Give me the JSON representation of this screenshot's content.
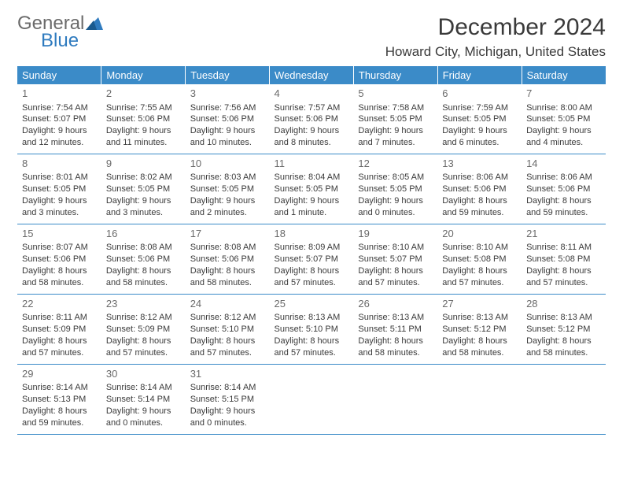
{
  "logo": {
    "text_top": "General",
    "text_bottom": "Blue"
  },
  "title": "December 2024",
  "location": "Howard City, Michigan, United States",
  "colors": {
    "header_bg": "#3b8bc8",
    "header_text": "#ffffff",
    "shaded_bg": "#eeeeee",
    "border": "#3b8bc8",
    "logo_gray": "#6b6b6b",
    "logo_blue": "#2f7bbf"
  },
  "day_headers": [
    "Sunday",
    "Monday",
    "Tuesday",
    "Wednesday",
    "Thursday",
    "Friday",
    "Saturday"
  ],
  "weeks": [
    [
      {
        "n": "1",
        "shaded": true,
        "sunrise": "7:54 AM",
        "sunset": "5:07 PM",
        "daylight": "9 hours and 12 minutes."
      },
      {
        "n": "2",
        "shaded": false,
        "sunrise": "7:55 AM",
        "sunset": "5:06 PM",
        "daylight": "9 hours and 11 minutes."
      },
      {
        "n": "3",
        "shaded": false,
        "sunrise": "7:56 AM",
        "sunset": "5:06 PM",
        "daylight": "9 hours and 10 minutes."
      },
      {
        "n": "4",
        "shaded": false,
        "sunrise": "7:57 AM",
        "sunset": "5:06 PM",
        "daylight": "9 hours and 8 minutes."
      },
      {
        "n": "5",
        "shaded": false,
        "sunrise": "7:58 AM",
        "sunset": "5:05 PM",
        "daylight": "9 hours and 7 minutes."
      },
      {
        "n": "6",
        "shaded": false,
        "sunrise": "7:59 AM",
        "sunset": "5:05 PM",
        "daylight": "9 hours and 6 minutes."
      },
      {
        "n": "7",
        "shaded": true,
        "sunrise": "8:00 AM",
        "sunset": "5:05 PM",
        "daylight": "9 hours and 4 minutes."
      }
    ],
    [
      {
        "n": "8",
        "shaded": true,
        "sunrise": "8:01 AM",
        "sunset": "5:05 PM",
        "daylight": "9 hours and 3 minutes."
      },
      {
        "n": "9",
        "shaded": false,
        "sunrise": "8:02 AM",
        "sunset": "5:05 PM",
        "daylight": "9 hours and 3 minutes."
      },
      {
        "n": "10",
        "shaded": false,
        "sunrise": "8:03 AM",
        "sunset": "5:05 PM",
        "daylight": "9 hours and 2 minutes."
      },
      {
        "n": "11",
        "shaded": false,
        "sunrise": "8:04 AM",
        "sunset": "5:05 PM",
        "daylight": "9 hours and 1 minute."
      },
      {
        "n": "12",
        "shaded": false,
        "sunrise": "8:05 AM",
        "sunset": "5:05 PM",
        "daylight": "9 hours and 0 minutes."
      },
      {
        "n": "13",
        "shaded": false,
        "sunrise": "8:06 AM",
        "sunset": "5:06 PM",
        "daylight": "8 hours and 59 minutes."
      },
      {
        "n": "14",
        "shaded": true,
        "sunrise": "8:06 AM",
        "sunset": "5:06 PM",
        "daylight": "8 hours and 59 minutes."
      }
    ],
    [
      {
        "n": "15",
        "shaded": true,
        "sunrise": "8:07 AM",
        "sunset": "5:06 PM",
        "daylight": "8 hours and 58 minutes."
      },
      {
        "n": "16",
        "shaded": false,
        "sunrise": "8:08 AM",
        "sunset": "5:06 PM",
        "daylight": "8 hours and 58 minutes."
      },
      {
        "n": "17",
        "shaded": false,
        "sunrise": "8:08 AM",
        "sunset": "5:06 PM",
        "daylight": "8 hours and 58 minutes."
      },
      {
        "n": "18",
        "shaded": false,
        "sunrise": "8:09 AM",
        "sunset": "5:07 PM",
        "daylight": "8 hours and 57 minutes."
      },
      {
        "n": "19",
        "shaded": false,
        "sunrise": "8:10 AM",
        "sunset": "5:07 PM",
        "daylight": "8 hours and 57 minutes."
      },
      {
        "n": "20",
        "shaded": false,
        "sunrise": "8:10 AM",
        "sunset": "5:08 PM",
        "daylight": "8 hours and 57 minutes."
      },
      {
        "n": "21",
        "shaded": true,
        "sunrise": "8:11 AM",
        "sunset": "5:08 PM",
        "daylight": "8 hours and 57 minutes."
      }
    ],
    [
      {
        "n": "22",
        "shaded": true,
        "sunrise": "8:11 AM",
        "sunset": "5:09 PM",
        "daylight": "8 hours and 57 minutes."
      },
      {
        "n": "23",
        "shaded": false,
        "sunrise": "8:12 AM",
        "sunset": "5:09 PM",
        "daylight": "8 hours and 57 minutes."
      },
      {
        "n": "24",
        "shaded": false,
        "sunrise": "8:12 AM",
        "sunset": "5:10 PM",
        "daylight": "8 hours and 57 minutes."
      },
      {
        "n": "25",
        "shaded": false,
        "sunrise": "8:13 AM",
        "sunset": "5:10 PM",
        "daylight": "8 hours and 57 minutes."
      },
      {
        "n": "26",
        "shaded": false,
        "sunrise": "8:13 AM",
        "sunset": "5:11 PM",
        "daylight": "8 hours and 58 minutes."
      },
      {
        "n": "27",
        "shaded": false,
        "sunrise": "8:13 AM",
        "sunset": "5:12 PM",
        "daylight": "8 hours and 58 minutes."
      },
      {
        "n": "28",
        "shaded": true,
        "sunrise": "8:13 AM",
        "sunset": "5:12 PM",
        "daylight": "8 hours and 58 minutes."
      }
    ],
    [
      {
        "n": "29",
        "shaded": true,
        "sunrise": "8:14 AM",
        "sunset": "5:13 PM",
        "daylight": "8 hours and 59 minutes."
      },
      {
        "n": "30",
        "shaded": false,
        "sunrise": "8:14 AM",
        "sunset": "5:14 PM",
        "daylight": "9 hours and 0 minutes."
      },
      {
        "n": "31",
        "shaded": false,
        "sunrise": "8:14 AM",
        "sunset": "5:15 PM",
        "daylight": "9 hours and 0 minutes."
      },
      {
        "empty": true,
        "shaded": true
      },
      {
        "empty": true,
        "shaded": true
      },
      {
        "empty": true,
        "shaded": true
      },
      {
        "empty": true,
        "shaded": true
      }
    ]
  ]
}
